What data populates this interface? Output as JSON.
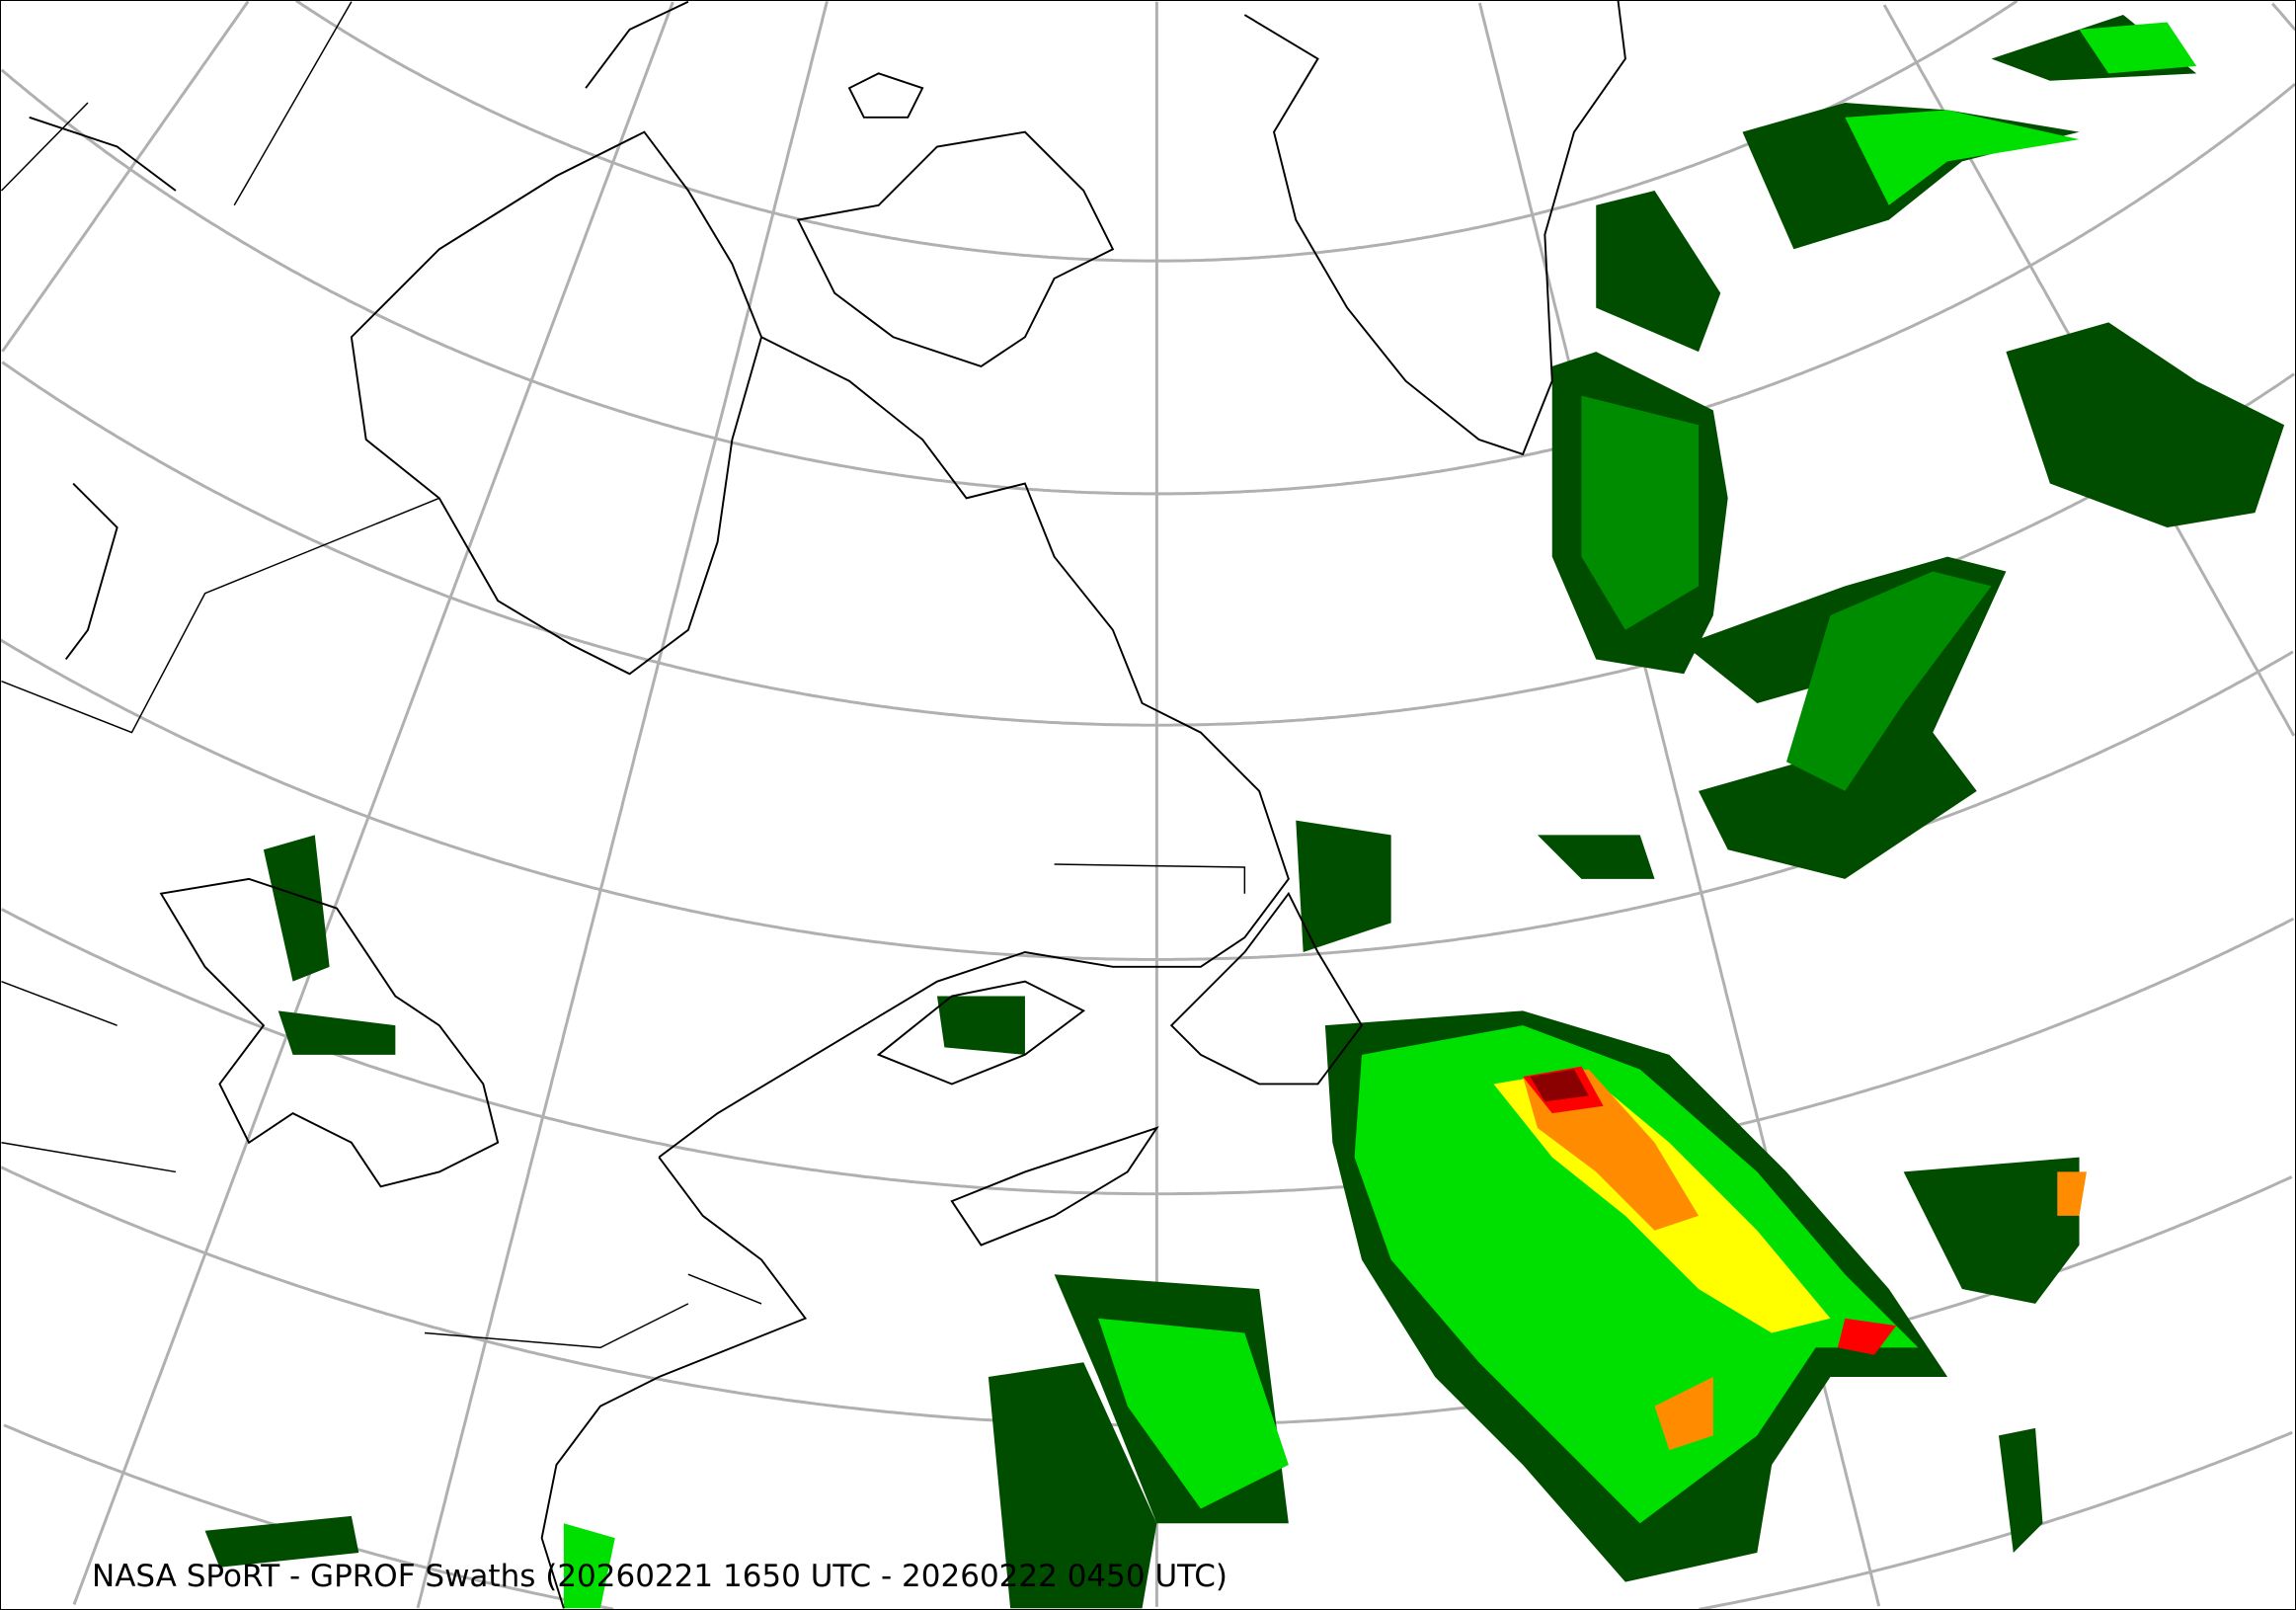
{
  "map": {
    "caption": "NASA SPoRT - GPROF Swaths (20260221 1650 UTC - 20260222 0450 UTC)",
    "colors": {
      "graticule": "#b0b0b0",
      "coastline": "#000000",
      "precip_dark_green": "#004d00",
      "precip_green": "#008c00",
      "precip_light_green": "#00e000",
      "precip_yellow": "#ffff00",
      "precip_orange": "#ff8c00",
      "precip_red": "#ff0000",
      "precip_dark_red": "#8b0000"
    }
  }
}
